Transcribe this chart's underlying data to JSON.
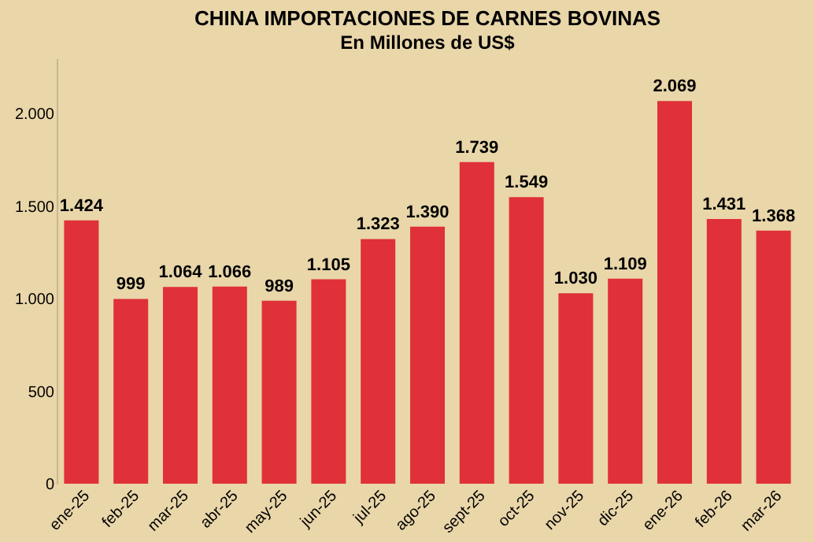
{
  "chart_data": {
    "type": "bar",
    "title": "CHINA IMPORTACIONES DE CARNES BOVINAS",
    "subtitle": "En Millones de US$",
    "categories": [
      "ene-25",
      "feb-25",
      "mar-25",
      "abr-25",
      "may-25",
      "jun-25",
      "jul-25",
      "ago-25",
      "sept-25",
      "oct-25",
      "nov-25",
      "dic-25",
      "ene-26",
      "feb-26",
      "mar-26"
    ],
    "values": [
      1424,
      999,
      1064,
      1066,
      989,
      1105,
      1323,
      1390,
      1739,
      1549,
      1030,
      1109,
      2069,
      1431,
      1368
    ],
    "value_labels": [
      "1.424",
      "999",
      "1.064",
      "1.066",
      "989",
      "1.105",
      "1.323",
      "1.390",
      "1.739",
      "1.549",
      "1.030",
      "1.109",
      "2.069",
      "1.431",
      "1.368"
    ],
    "color": "#e0303a",
    "ylim": [
      0,
      2300
    ],
    "yticks": [
      0,
      500,
      {
        "value": 1000,
        "label": "1.000"
      },
      {
        "value": 1500,
        "label": "1.500"
      },
      {
        "value": 2000,
        "label": "2.000"
      }
    ],
    "grid": false
  }
}
